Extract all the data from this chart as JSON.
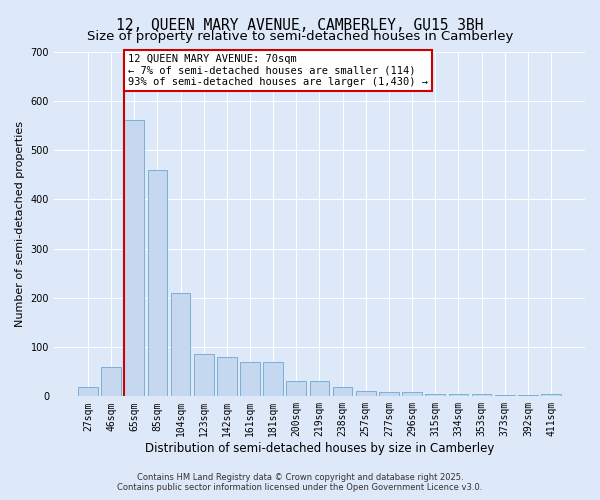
{
  "title1": "12, QUEEN MARY AVENUE, CAMBERLEY, GU15 3BH",
  "title2": "Size of property relative to semi-detached houses in Camberley",
  "xlabel": "Distribution of semi-detached houses by size in Camberley",
  "ylabel": "Number of semi-detached properties",
  "footer1": "Contains HM Land Registry data © Crown copyright and database right 2025.",
  "footer2": "Contains public sector information licensed under the Open Government Licence v3.0.",
  "categories": [
    "27sqm",
    "46sqm",
    "65sqm",
    "85sqm",
    "104sqm",
    "123sqm",
    "142sqm",
    "161sqm",
    "181sqm",
    "200sqm",
    "219sqm",
    "238sqm",
    "257sqm",
    "277sqm",
    "296sqm",
    "315sqm",
    "334sqm",
    "353sqm",
    "373sqm",
    "392sqm",
    "411sqm"
  ],
  "values": [
    18,
    60,
    560,
    460,
    210,
    85,
    80,
    70,
    70,
    32,
    32,
    18,
    10,
    8,
    8,
    5,
    5,
    5,
    3,
    2,
    4
  ],
  "bar_color": "#c5d8f0",
  "bar_edge_color": "#7aafd4",
  "bar_edge_width": 0.7,
  "marker_index": 2,
  "marker_line_color": "#cc0000",
  "annotation_line1": "12 QUEEN MARY AVENUE: 70sqm",
  "annotation_line2": "← 7% of semi-detached houses are smaller (114)",
  "annotation_line3": "93% of semi-detached houses are larger (1,430) →",
  "annotation_box_color": "#ffffff",
  "annotation_box_edge_color": "#cc0000",
  "ylim": [
    0,
    700
  ],
  "yticks": [
    0,
    100,
    200,
    300,
    400,
    500,
    600,
    700
  ],
  "bg_color": "#dde8f8",
  "plot_bg_color": "#dde8f8",
  "grid_color": "#ffffff",
  "title1_fontsize": 10.5,
  "title2_fontsize": 9.5,
  "xlabel_fontsize": 8.5,
  "ylabel_fontsize": 8,
  "tick_fontsize": 7,
  "annot_fontsize": 7.5,
  "footer_fontsize": 6
}
